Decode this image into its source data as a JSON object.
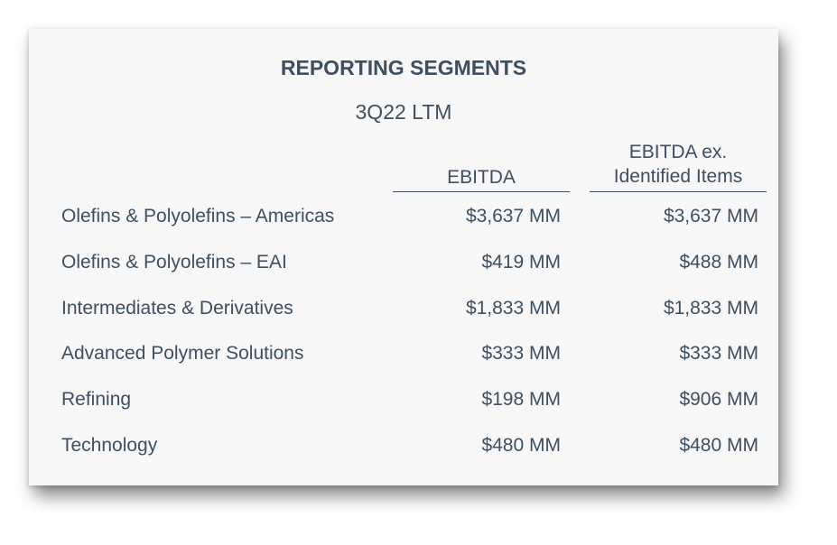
{
  "title": "REPORTING SEGMENTS",
  "subtitle": "3Q22 LTM",
  "columns": {
    "ebitda": "EBITDA",
    "ebitda_ex_line1": "EBITDA ex.",
    "ebitda_ex_line2": "Identified Items"
  },
  "rows": [
    {
      "segment": "Olefins & Polyolefins – Americas",
      "ebitda": "$3,637 MM",
      "ebitda_ex": "$3,637 MM"
    },
    {
      "segment": "Olefins & Polyolefins – EAI",
      "ebitda": "$419 MM",
      "ebitda_ex": "$488 MM"
    },
    {
      "segment": "Intermediates & Derivatives",
      "ebitda": "$1,833 MM",
      "ebitda_ex": "$1,833 MM"
    },
    {
      "segment": "Advanced Polymer Solutions",
      "ebitda": "$333 MM",
      "ebitda_ex": "$333 MM"
    },
    {
      "segment": "Refining",
      "ebitda": "$198 MM",
      "ebitda_ex": "$906 MM"
    },
    {
      "segment": "Technology",
      "ebitda": "$480 MM",
      "ebitda_ex": "$480 MM"
    }
  ],
  "colors": {
    "text": "#3d4f60",
    "card_background": "#f7f7f7"
  }
}
